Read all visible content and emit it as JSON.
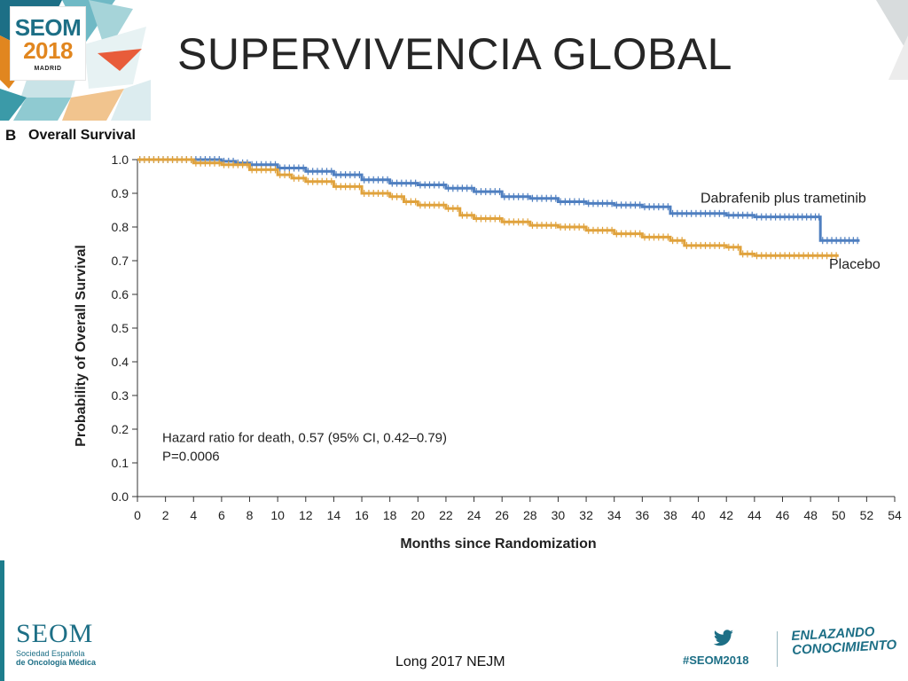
{
  "slide": {
    "title": "SUPERVIVENCIA GLOBAL",
    "citation": "Long 2017 NEJM"
  },
  "logo": {
    "brand": "SEOM",
    "year": "2018",
    "city": "MADRID"
  },
  "footer": {
    "org_name": "SEOM",
    "org_line1": "Sociedad Española",
    "org_line2": "de Oncología Médica",
    "hashtag": "#SEOM2018",
    "tagline_line1": "ENLAZANDO",
    "tagline_line2": "CONOCIMIENTO",
    "twitter_icon": "twitter-bird-icon"
  },
  "colors": {
    "dabrafenib": "#4f7fc0",
    "placebo": "#e0a23c",
    "brand_teal": "#1d6f86",
    "brand_orange": "#e1861f"
  },
  "chart_data": {
    "type": "line",
    "panel_label": "B",
    "title": "Overall Survival",
    "xlabel": "Months since Randomization",
    "ylabel": "Probability of Overall Survival",
    "xlim": [
      0,
      54
    ],
    "ylim": [
      0,
      1.0
    ],
    "x_ticks": [
      "0",
      "2",
      "4",
      "6",
      "8",
      "10",
      "12",
      "14",
      "16",
      "18",
      "20",
      "22",
      "24",
      "26",
      "28",
      "30",
      "32",
      "34",
      "36",
      "38",
      "40",
      "42",
      "44",
      "46",
      "48",
      "50",
      "52",
      "54"
    ],
    "y_ticks": [
      "0.0",
      "0.1",
      "0.2",
      "0.3",
      "0.4",
      "0.5",
      "0.6",
      "0.7",
      "0.8",
      "0.9",
      "1.0"
    ],
    "grid": false,
    "annotation_line1": "Hazard ratio for death, 0.57 (95% CI, 0.42–0.79)",
    "annotation_line2": "P=0.0006",
    "series": [
      {
        "name": "Dabrafenib plus trametinib",
        "color": "#4f7fc0",
        "x": [
          0,
          4,
          6,
          7,
          8,
          10,
          12,
          14,
          16,
          18,
          20,
          22,
          24,
          26,
          28,
          30,
          32,
          34,
          36,
          38,
          40,
          42,
          44,
          46,
          48.5,
          48.7,
          50,
          51.5
        ],
        "y": [
          1.0,
          1.0,
          0.995,
          0.99,
          0.985,
          0.975,
          0.965,
          0.955,
          0.94,
          0.93,
          0.925,
          0.915,
          0.905,
          0.89,
          0.885,
          0.875,
          0.87,
          0.865,
          0.86,
          0.84,
          0.84,
          0.835,
          0.83,
          0.83,
          0.83,
          0.76,
          0.76,
          0.76
        ]
      },
      {
        "name": "Placebo",
        "color": "#e0a23c",
        "x": [
          0,
          4,
          6,
          8,
          10,
          11,
          12,
          14,
          16,
          18,
          19,
          20,
          22,
          23,
          24,
          26,
          28,
          30,
          32,
          34,
          36,
          38,
          39,
          40,
          42,
          43,
          44,
          46,
          48,
          50
        ],
        "y": [
          1.0,
          0.99,
          0.985,
          0.97,
          0.955,
          0.945,
          0.935,
          0.92,
          0.9,
          0.89,
          0.875,
          0.865,
          0.855,
          0.835,
          0.825,
          0.815,
          0.805,
          0.8,
          0.79,
          0.78,
          0.77,
          0.76,
          0.745,
          0.745,
          0.74,
          0.72,
          0.715,
          0.715,
          0.715,
          0.715
        ]
      }
    ],
    "series_labels": [
      "Dabrafenib plus trametinib",
      "Placebo"
    ]
  }
}
